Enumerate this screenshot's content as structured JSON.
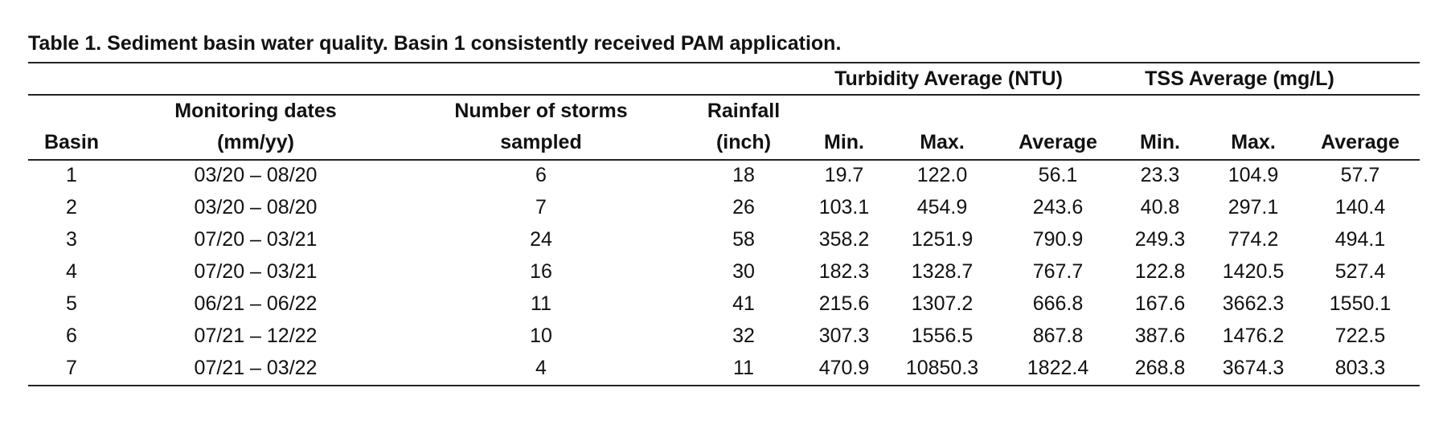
{
  "title": "Table 1. Sediment basin water quality. Basin 1 consistently received PAM application.",
  "table": {
    "groups": [
      "Turbidity Average (NTU)",
      "TSS Average (mg/L)"
    ],
    "columns": [
      [
        "Basin"
      ],
      [
        "Monitoring dates",
        "(mm/yy)"
      ],
      [
        "Number of storms",
        "sampled"
      ],
      [
        "Rainfall",
        "(inch)"
      ],
      [
        "Min."
      ],
      [
        "Max."
      ],
      [
        "Average"
      ],
      [
        "Min."
      ],
      [
        "Max."
      ],
      [
        "Average"
      ]
    ],
    "rows": [
      [
        "1",
        "03/20 – 08/20",
        "6",
        "18",
        "19.7",
        "122.0",
        "56.1",
        "23.3",
        "104.9",
        "57.7"
      ],
      [
        "2",
        "03/20 – 08/20",
        "7",
        "26",
        "103.1",
        "454.9",
        "243.6",
        "40.8",
        "297.1",
        "140.4"
      ],
      [
        "3",
        "07/20 – 03/21",
        "24",
        "58",
        "358.2",
        "1251.9",
        "790.9",
        "249.3",
        "774.2",
        "494.1"
      ],
      [
        "4",
        "07/20 – 03/21",
        "16",
        "30",
        "182.3",
        "1328.7",
        "767.7",
        "122.8",
        "1420.5",
        "527.4"
      ],
      [
        "5",
        "06/21 – 06/22",
        "11",
        "41",
        "215.6",
        "1307.2",
        "666.8",
        "167.6",
        "3662.3",
        "1550.1"
      ],
      [
        "6",
        "07/21 – 12/22",
        "10",
        "32",
        "307.3",
        "1556.5",
        "867.8",
        "387.6",
        "1476.2",
        "722.5"
      ],
      [
        "7",
        "07/21 – 03/22",
        "4",
        "11",
        "470.9",
        "10850.3",
        "1822.4",
        "268.8",
        "3674.3",
        "803.3"
      ]
    ]
  }
}
